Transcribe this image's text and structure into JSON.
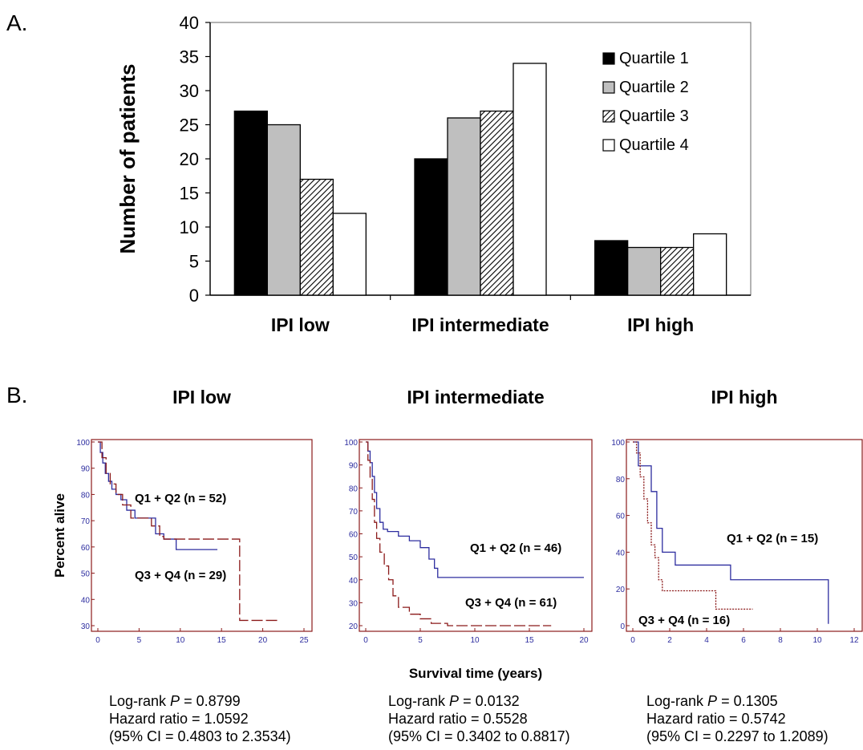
{
  "panel_a_letter": "A.",
  "panel_b_letter": "B.",
  "chart_data": [
    {
      "type": "bar",
      "categories": [
        "IPI low",
        "IPI intermediate",
        "IPI high"
      ],
      "series": [
        {
          "name": "Quartile 1",
          "values": [
            27,
            20,
            8
          ],
          "color": "#000000",
          "pattern": "solid"
        },
        {
          "name": "Quartile 2",
          "values": [
            25,
            26,
            7
          ],
          "color": "#bfbfbf",
          "pattern": "solid"
        },
        {
          "name": "Quartile 3",
          "values": [
            17,
            27,
            7
          ],
          "color": "#ffffff",
          "pattern": "hatch"
        },
        {
          "name": "Quartile 4",
          "values": [
            12,
            34,
            9
          ],
          "color": "#ffffff",
          "pattern": "solid"
        }
      ],
      "ylabel": "Number of patients",
      "xlabel": "",
      "ylim": [
        0,
        40
      ],
      "yticks": [
        0,
        5,
        10,
        15,
        20,
        25,
        30,
        35,
        40
      ],
      "grid": false,
      "legend": "top-right"
    },
    {
      "type": "line",
      "title": "IPI low",
      "ylabel": "Percent alive",
      "xlim": [
        0,
        25
      ],
      "ylim": [
        30,
        100
      ],
      "xticks": [
        0,
        5,
        10,
        15,
        20,
        25
      ],
      "yticks": [
        30,
        40,
        50,
        60,
        70,
        80,
        90,
        100
      ],
      "series": [
        {
          "name": "Q1 + Q2 (n = 52)",
          "color": "#2d2d9f",
          "style": "solid",
          "x": [
            0,
            0.3,
            0.6,
            0.9,
            1.3,
            1.7,
            2.2,
            2.8,
            3.5,
            4.5,
            7,
            8,
            9.5,
            14.5
          ],
          "y": [
            100,
            96,
            92,
            88,
            85,
            82,
            80,
            78,
            74,
            71,
            65,
            63,
            59,
            59
          ]
        },
        {
          "name": "Q3 + Q4 (n = 29)",
          "color": "#8b1a1a",
          "style": "dashed",
          "x": [
            0,
            0.5,
            1,
            1.5,
            2.2,
            3,
            4,
            6.5,
            7.5,
            8,
            17,
            17.2,
            22
          ],
          "y": [
            100,
            94,
            88,
            84,
            80,
            76,
            71,
            68,
            64,
            63,
            63,
            32,
            32
          ]
        }
      ],
      "stats": {
        "logrank_label": "Log-rank ",
        "p_symbol": "P",
        "logrank_value": " = 0.8799",
        "hazard": "Hazard ratio = 1.0592",
        "ci": "(95% CI = 0.4803 to 2.3534)"
      }
    },
    {
      "type": "line",
      "title": "IPI intermediate",
      "xlabel": "Survival time (years)",
      "xlim": [
        0,
        20
      ],
      "ylim": [
        20,
        100
      ],
      "xticks": [
        0,
        5,
        10,
        15,
        20
      ],
      "yticks": [
        20,
        30,
        40,
        50,
        60,
        70,
        80,
        90,
        100
      ],
      "series": [
        {
          "name": "Q1 + Q2 (n = 46)",
          "color": "#2d2d9f",
          "style": "solid",
          "x": [
            0,
            0.2,
            0.4,
            0.6,
            0.8,
            1.0,
            1.3,
            1.6,
            2.0,
            3.0,
            4.0,
            5.0,
            5.8,
            6.3,
            6.6,
            20
          ],
          "y": [
            100,
            96,
            91,
            85,
            78,
            71,
            65,
            62,
            61,
            59,
            57,
            54,
            49,
            45,
            41,
            41
          ]
        },
        {
          "name": "Q3 + Q4 (n = 61)",
          "color": "#8b1a1a",
          "style": "dashed",
          "x": [
            0,
            0.2,
            0.4,
            0.6,
            0.8,
            1.0,
            1.3,
            1.7,
            2.1,
            2.5,
            3.0,
            4.0,
            5.0,
            6.0,
            7.5,
            17
          ],
          "y": [
            100,
            92,
            84,
            75,
            65,
            58,
            52,
            46,
            40,
            33,
            28,
            25,
            23,
            21,
            20,
            20
          ]
        }
      ],
      "stats": {
        "logrank_label": "Log-rank ",
        "p_symbol": "P",
        "logrank_value": " = 0.0132",
        "hazard": "Hazard ratio = 0.5528",
        "ci": "(95% CI = 0.3402 to 0.8817)"
      }
    },
    {
      "type": "line",
      "title": "IPI high",
      "xlim": [
        0,
        12
      ],
      "ylim": [
        0,
        100
      ],
      "xticks": [
        0,
        2,
        4,
        6,
        8,
        10,
        12
      ],
      "yticks": [
        0,
        20,
        40,
        60,
        80,
        100
      ],
      "series": [
        {
          "name": "Q1 + Q2  (n = 15)",
          "color": "#2d2d9f",
          "style": "solid",
          "x": [
            0,
            0.3,
            1.0,
            1.3,
            1.6,
            2.3,
            5.3,
            10.6,
            10.6
          ],
          "y": [
            100,
            87,
            73,
            53,
            40,
            33,
            25,
            25,
            1
          ]
        },
        {
          "name": "Q3 + Q4 (n = 16)",
          "color": "#8b1a1a",
          "style": "dotted",
          "x": [
            0,
            0.2,
            0.4,
            0.6,
            0.8,
            1.0,
            1.2,
            1.4,
            1.6,
            4.5,
            6.5
          ],
          "y": [
            100,
            94,
            81,
            69,
            56,
            44,
            37,
            25,
            19,
            9,
            9
          ]
        }
      ],
      "stats": {
        "logrank_label": "Log-rank ",
        "p_symbol": "P",
        "logrank_value": " = 0.1305",
        "hazard": "Hazard ratio = 0.5742",
        "ci": "(95% CI = 0.2297 to 1.2089)"
      }
    }
  ]
}
